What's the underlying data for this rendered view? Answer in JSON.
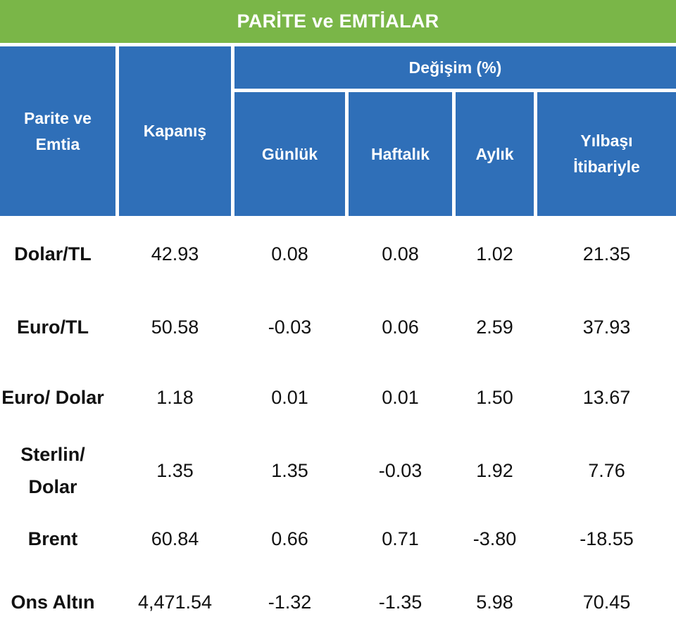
{
  "title": "PARİTE ve EMTİALAR",
  "header": {
    "col_instrument": "Parite ve Emtia",
    "col_close": "Kapanış",
    "change_group": "Değişim (%)",
    "col_daily": "Günlük",
    "col_weekly": "Haftalık",
    "col_monthly": "Aylık",
    "col_ytd": "Yılbaşı İtibariyle"
  },
  "rows": [
    {
      "name": "Dolar/TL",
      "close": "42.93",
      "daily": "0.08",
      "weekly": "0.08",
      "monthly": "1.02",
      "ytd": "21.35"
    },
    {
      "name": "Euro/TL",
      "close": "50.58",
      "daily": "-0.03",
      "weekly": "0.06",
      "monthly": "2.59",
      "ytd": "37.93"
    },
    {
      "name": "Euro/ Dolar",
      "close": "1.18",
      "daily": "0.01",
      "weekly": "0.01",
      "monthly": "1.50",
      "ytd": "13.67"
    },
    {
      "name": "Sterlin/ Dolar",
      "close": "1.35",
      "daily": "1.35",
      "weekly": "-0.03",
      "monthly": "1.92",
      "ytd": "7.76"
    },
    {
      "name": "Brent",
      "close": "60.84",
      "daily": "0.66",
      "weekly": "0.71",
      "monthly": "-3.80",
      "ytd": "-18.55"
    },
    {
      "name": "Ons Altın",
      "close": "4,471.54",
      "daily": "-1.32",
      "weekly": "-1.35",
      "monthly": "5.98",
      "ytd": "70.45"
    }
  ],
  "colors": {
    "title_bg": "#7ab648",
    "header_bg": "#2f6fb8",
    "text": "#111111"
  }
}
